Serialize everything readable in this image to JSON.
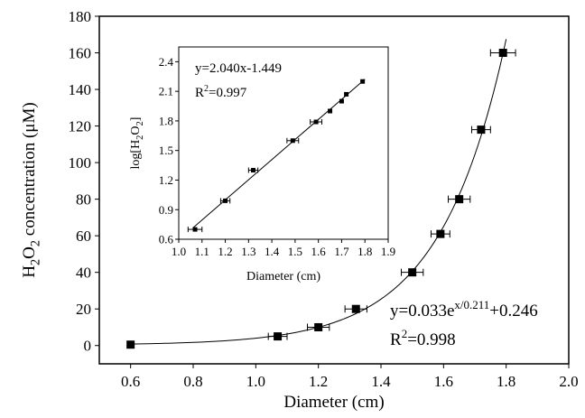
{
  "chart_data": [
    {
      "type": "scatter",
      "xlabel": "Diameter (cm)",
      "ylabel_parts": [
        "H",
        "2",
        "O",
        "2",
        " concentration (μM)"
      ],
      "xlim": [
        0.5,
        2.0
      ],
      "ylim": [
        -10,
        180
      ],
      "xticks": [
        0.6,
        0.8,
        1.0,
        1.2,
        1.4,
        1.6,
        1.8,
        2.0
      ],
      "xtick_labels": [
        "0.6",
        "0.8",
        "1.0",
        "1.2",
        "1.4",
        "1.6",
        "1.8",
        "2.0"
      ],
      "yticks": [
        0,
        20,
        40,
        60,
        80,
        100,
        120,
        140,
        160,
        180
      ],
      "ytick_labels": [
        "0",
        "20",
        "40",
        "60",
        "80",
        "100",
        "120",
        "140",
        "160",
        "180"
      ],
      "points": [
        {
          "x": 0.6,
          "y": 0.5,
          "xerr": 0
        },
        {
          "x": 1.07,
          "y": 5,
          "xerr": 0.03
        },
        {
          "x": 1.2,
          "y": 10,
          "xerr": 0.035
        },
        {
          "x": 1.32,
          "y": 20,
          "xerr": 0.035
        },
        {
          "x": 1.5,
          "y": 40,
          "xerr": 0.035
        },
        {
          "x": 1.59,
          "y": 61,
          "xerr": 0.03
        },
        {
          "x": 1.65,
          "y": 80,
          "xerr": 0.035
        },
        {
          "x": 1.72,
          "y": 118,
          "xerr": 0.03
        },
        {
          "x": 1.79,
          "y": 160,
          "xerr": 0.04
        }
      ],
      "fit": {
        "a": 0.033,
        "b": 0.211,
        "c": 0.246,
        "x_from": 0.6,
        "x_to": 1.8
      },
      "equation": {
        "prefix": "y=0.033e",
        "exponent": "x/0.211",
        "suffix": "+0.246"
      },
      "r2_value": "=0.998",
      "grid": false
    },
    {
      "type": "scatter",
      "role": "inset",
      "xlabel": "Diameter (cm)",
      "ylabel_parts": [
        "log[H",
        "2",
        "O",
        "2",
        "]"
      ],
      "xlim": [
        1.0,
        1.9
      ],
      "ylim": [
        0.6,
        2.55
      ],
      "xticks": [
        1.0,
        1.1,
        1.2,
        1.3,
        1.4,
        1.5,
        1.6,
        1.7,
        1.8,
        1.9
      ],
      "xtick_labels": [
        "1.0",
        "1.1",
        "1.2",
        "1.3",
        "1.4",
        "1.5",
        "1.6",
        "1.7",
        "1.8",
        "1.9"
      ],
      "yticks": [
        0.6,
        0.9,
        1.2,
        1.5,
        1.8,
        2.1,
        2.4
      ],
      "ytick_labels": [
        "0.6",
        "0.9",
        "1.2",
        "1.5",
        "1.8",
        "2.1",
        "2.4"
      ],
      "points": [
        {
          "x": 1.07,
          "y": 0.7,
          "xerr": 0.03
        },
        {
          "x": 1.2,
          "y": 0.99,
          "xerr": 0.02
        },
        {
          "x": 1.32,
          "y": 1.3,
          "xerr": 0.02
        },
        {
          "x": 1.49,
          "y": 1.6,
          "xerr": 0.025
        },
        {
          "x": 1.59,
          "y": 1.79,
          "xerr": 0.025
        },
        {
          "x": 1.65,
          "y": 1.9,
          "xerr": 0
        },
        {
          "x": 1.7,
          "y": 2.0,
          "xerr": 0
        },
        {
          "x": 1.72,
          "y": 2.07,
          "xerr": 0
        },
        {
          "x": 1.79,
          "y": 2.2,
          "xerr": 0
        }
      ],
      "fit": {
        "slope": 2.04,
        "intercept": -1.449,
        "x_from": 1.06,
        "x_to": 1.8
      },
      "equation": "y=2.040x-1.449",
      "r2_value": "=0.997",
      "grid": false
    }
  ]
}
